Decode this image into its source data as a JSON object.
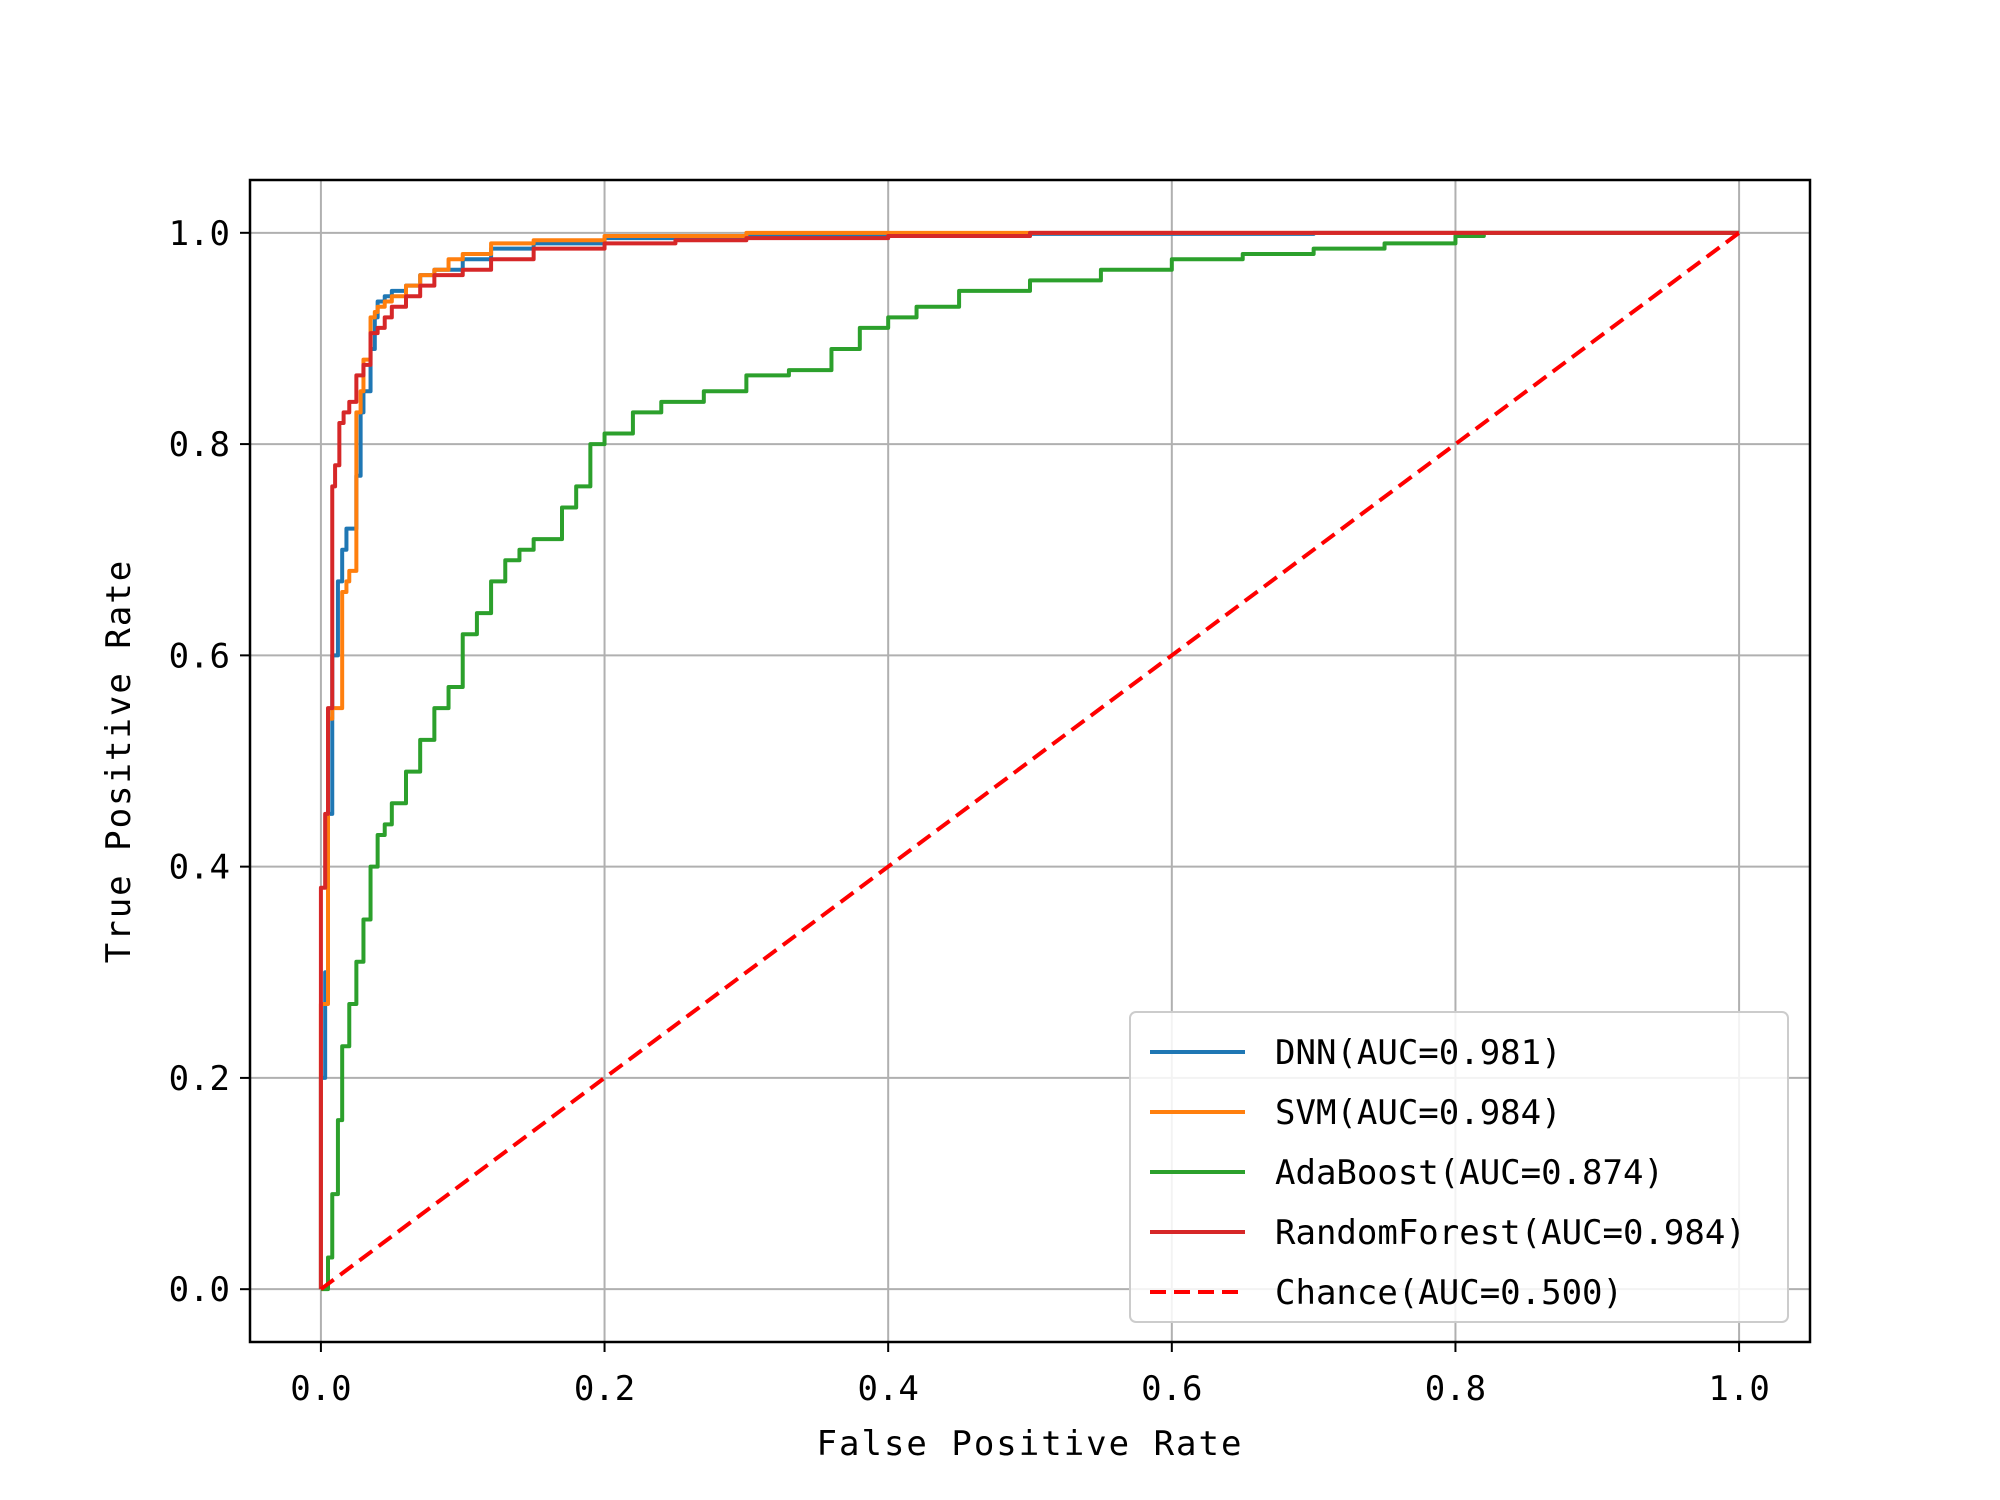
{
  "chart_data": {
    "type": "line",
    "title": "",
    "xlabel": "False Positive Rate",
    "ylabel": "True Positive Rate",
    "xlim": [
      -0.05,
      1.05
    ],
    "ylim": [
      -0.05,
      1.05
    ],
    "xticks": [
      0.0,
      0.2,
      0.4,
      0.6,
      0.8,
      1.0
    ],
    "yticks": [
      0.0,
      0.2,
      0.4,
      0.6,
      0.8,
      1.0
    ],
    "xtick_labels": [
      "0.0",
      "0.2",
      "0.4",
      "0.6",
      "0.8",
      "1.0"
    ],
    "ytick_labels": [
      "0.0",
      "0.2",
      "0.4",
      "0.6",
      "0.8",
      "1.0"
    ],
    "grid": true,
    "legend_position": "lower-right",
    "series": [
      {
        "name": "DNN(AUC=0.981)",
        "color": "#1f77b4",
        "style": "solid",
        "x": [
          0.0,
          0.0,
          0.003,
          0.005,
          0.008,
          0.012,
          0.015,
          0.018,
          0.02,
          0.025,
          0.028,
          0.03,
          0.035,
          0.038,
          0.04,
          0.045,
          0.05,
          0.06,
          0.07,
          0.08,
          0.1,
          0.12,
          0.15,
          0.2,
          0.3,
          0.5,
          0.7,
          1.0
        ],
        "y": [
          0.0,
          0.2,
          0.3,
          0.45,
          0.6,
          0.67,
          0.7,
          0.72,
          0.72,
          0.77,
          0.83,
          0.85,
          0.89,
          0.92,
          0.935,
          0.94,
          0.945,
          0.95,
          0.96,
          0.965,
          0.975,
          0.985,
          0.99,
          0.995,
          0.997,
          0.999,
          1.0,
          1.0
        ]
      },
      {
        "name": "SVM(AUC=0.984)",
        "color": "#ff7f0e",
        "style": "solid",
        "x": [
          0.0,
          0.0,
          0.005,
          0.008,
          0.01,
          0.015,
          0.018,
          0.02,
          0.025,
          0.028,
          0.03,
          0.035,
          0.038,
          0.04,
          0.045,
          0.05,
          0.06,
          0.07,
          0.08,
          0.09,
          0.1,
          0.12,
          0.15,
          0.2,
          0.3,
          0.5,
          1.0
        ],
        "y": [
          0.0,
          0.27,
          0.54,
          0.55,
          0.55,
          0.66,
          0.67,
          0.68,
          0.83,
          0.85,
          0.88,
          0.92,
          0.925,
          0.93,
          0.935,
          0.94,
          0.95,
          0.96,
          0.965,
          0.975,
          0.98,
          0.99,
          0.993,
          0.997,
          1.0,
          1.0,
          1.0
        ]
      },
      {
        "name": "AdaBoost(AUC=0.874)",
        "color": "#2ca02c",
        "style": "solid",
        "x": [
          0.0,
          0.005,
          0.008,
          0.012,
          0.015,
          0.02,
          0.025,
          0.03,
          0.035,
          0.04,
          0.045,
          0.05,
          0.06,
          0.07,
          0.08,
          0.09,
          0.1,
          0.11,
          0.12,
          0.13,
          0.14,
          0.15,
          0.17,
          0.18,
          0.19,
          0.2,
          0.22,
          0.24,
          0.27,
          0.3,
          0.33,
          0.36,
          0.38,
          0.4,
          0.42,
          0.45,
          0.5,
          0.55,
          0.6,
          0.65,
          0.7,
          0.75,
          0.8,
          0.82,
          0.85,
          1.0
        ],
        "y": [
          0.0,
          0.03,
          0.09,
          0.16,
          0.23,
          0.27,
          0.31,
          0.35,
          0.4,
          0.43,
          0.44,
          0.46,
          0.49,
          0.52,
          0.55,
          0.57,
          0.62,
          0.64,
          0.67,
          0.69,
          0.7,
          0.71,
          0.74,
          0.76,
          0.8,
          0.81,
          0.83,
          0.84,
          0.85,
          0.865,
          0.87,
          0.89,
          0.91,
          0.92,
          0.93,
          0.945,
          0.955,
          0.965,
          0.975,
          0.98,
          0.985,
          0.99,
          0.997,
          1.0,
          1.0,
          1.0
        ]
      },
      {
        "name": "RandomForest(AUC=0.984)",
        "color": "#d62728",
        "style": "solid",
        "x": [
          0.0,
          0.0,
          0.003,
          0.005,
          0.008,
          0.01,
          0.013,
          0.016,
          0.02,
          0.025,
          0.03,
          0.035,
          0.04,
          0.045,
          0.05,
          0.06,
          0.07,
          0.08,
          0.1,
          0.12,
          0.15,
          0.2,
          0.25,
          0.3,
          0.4,
          0.5,
          0.6,
          1.0
        ],
        "y": [
          0.0,
          0.38,
          0.45,
          0.55,
          0.76,
          0.78,
          0.82,
          0.83,
          0.84,
          0.865,
          0.875,
          0.905,
          0.91,
          0.92,
          0.93,
          0.94,
          0.95,
          0.96,
          0.965,
          0.975,
          0.985,
          0.99,
          0.993,
          0.995,
          0.997,
          1.0,
          1.0,
          1.0
        ]
      },
      {
        "name": "Chance(AUC=0.500)",
        "color": "#ff0000",
        "style": "dashed",
        "x": [
          0.0,
          1.0
        ],
        "y": [
          0.0,
          1.0
        ]
      }
    ]
  }
}
